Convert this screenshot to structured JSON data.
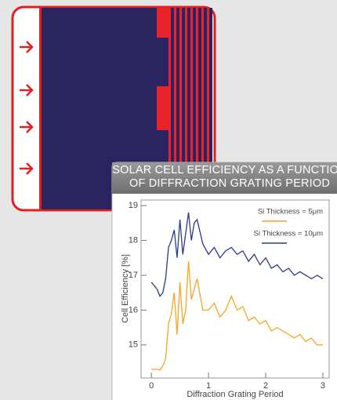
{
  "chart_data": {
    "type": "line",
    "title": "SOLAR CELL EFFICIENCY AS A FUNCTION OF DIFFRACTION GRATING PERIOD",
    "x_label": "Diffraction Grating Period",
    "y_label": "Cell Efficiency [%]",
    "x": [
      0,
      0.1,
      0.15,
      0.2,
      0.25,
      0.3,
      0.35,
      0.4,
      0.45,
      0.5,
      0.55,
      0.6,
      0.65,
      0.7,
      0.75,
      0.8,
      0.9,
      1.0,
      1.1,
      1.2,
      1.3,
      1.4,
      1.5,
      1.6,
      1.7,
      1.8,
      1.9,
      2.0,
      2.1,
      2.2,
      2.3,
      2.4,
      2.5,
      2.6,
      2.7,
      2.8,
      2.9,
      3.0
    ],
    "series": [
      {
        "name": "Si Thickness = 5μm",
        "color": "#f5a623",
        "values": [
          14.3,
          14.3,
          14.28,
          14.4,
          14.6,
          15.6,
          15.9,
          16.5,
          15.3,
          16.8,
          15.6,
          16.0,
          17.4,
          16.3,
          16.6,
          16.9,
          16.0,
          16.0,
          16.2,
          15.8,
          16.0,
          16.4,
          16.0,
          16.1,
          15.7,
          15.8,
          15.6,
          15.7,
          15.4,
          15.5,
          15.4,
          15.3,
          15.2,
          15.3,
          15.1,
          15.2,
          15.0,
          15.0
        ]
      },
      {
        "name": "Si Thickness = 10μm",
        "color": "#2b3a8c",
        "values": [
          16.8,
          16.6,
          16.4,
          16.5,
          16.9,
          17.8,
          18.0,
          18.3,
          17.5,
          18.6,
          17.6,
          18.2,
          18.8,
          18.0,
          18.5,
          18.6,
          17.9,
          17.6,
          17.8,
          17.5,
          17.7,
          17.8,
          17.6,
          17.7,
          17.4,
          17.6,
          17.3,
          17.5,
          17.2,
          17.3,
          17.1,
          17.2,
          17.0,
          17.1,
          17.0,
          16.9,
          17.0,
          16.9
        ]
      }
    ],
    "xlim": [
      -0.18,
      3.11
    ],
    "ylim": [
      14.05,
      19.16
    ],
    "xticks": [
      0,
      1,
      2,
      3
    ],
    "yticks": [
      15,
      16,
      17,
      18,
      19
    ]
  }
}
